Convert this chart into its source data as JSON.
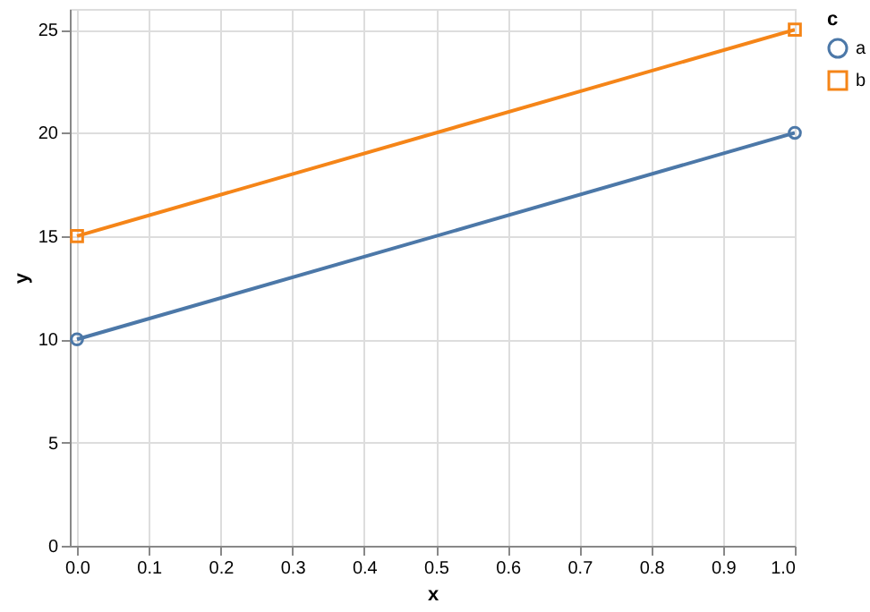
{
  "chart_data": {
    "type": "line",
    "xlabel": "x",
    "ylabel": "y",
    "legend_title": "c",
    "x": [
      0,
      1
    ],
    "series": [
      {
        "name": "a",
        "color": "#4c78a8",
        "values": [
          10,
          20
        ],
        "marker": "circle"
      },
      {
        "name": "b",
        "color": "#f58518",
        "values": [
          15,
          25
        ],
        "marker": "square"
      }
    ],
    "xlim": [
      -0.01,
      1.0
    ],
    "xticks": [
      {
        "value": 0,
        "label": "0.0"
      },
      0.1,
      0.2,
      0.3,
      0.4,
      0.5,
      0.6,
      0.7,
      0.8,
      0.9,
      {
        "value": 1,
        "label": "1.0"
      }
    ],
    "ylim": [
      0,
      26
    ],
    "yticks": [
      0,
      5,
      10,
      15,
      20,
      25
    ],
    "grid": true,
    "legend": "top right"
  }
}
